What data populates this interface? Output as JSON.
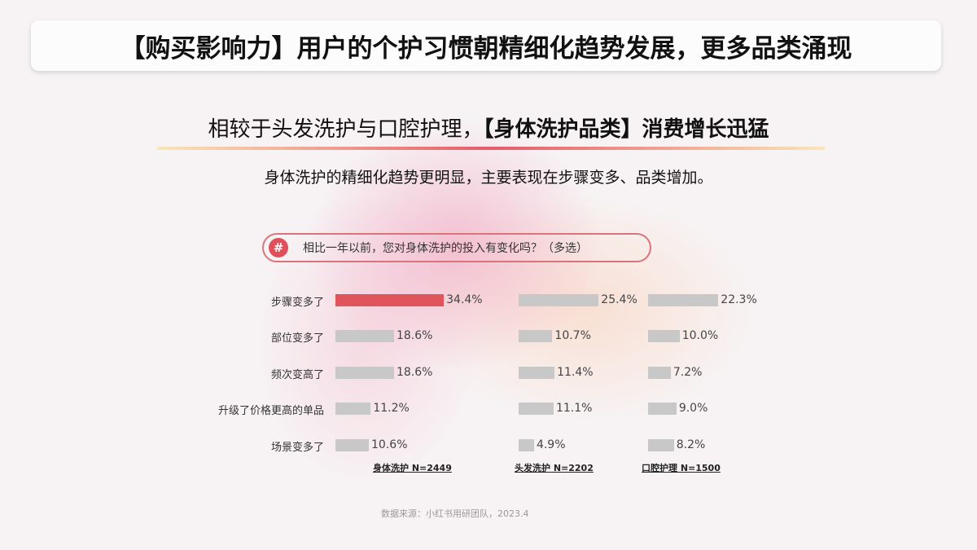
{
  "header": {
    "title": "【购买影响力】用户的个护习惯朝精细化趋势发展，更多品类涌现"
  },
  "subtitle": {
    "prefix": "相较于头发洗护与口腔护理，",
    "highlight": "【身体洗护品类】",
    "suffix": "消费增长迅猛"
  },
  "description": "身体洗护的精细化趋势更明显，主要表现在步骤变多、品类增加。",
  "question": {
    "icon": "hash-icon",
    "text": "相比一年以前，您对身体洗护的投入有变化吗？（多选）"
  },
  "chart_data": {
    "type": "bar",
    "orientation": "horizontal",
    "categories": [
      "步骤变多了",
      "部位变多了",
      "频次变高了",
      "升级了价格更高的单品",
      "场景变多了"
    ],
    "series": [
      {
        "name": "身体洗护 N=2449",
        "values": [
          34.4,
          18.6,
          18.6,
          11.2,
          10.6
        ],
        "labels": [
          "34.4%",
          "18.6%",
          "18.6%",
          "11.2%",
          "10.6%"
        ]
      },
      {
        "name": "头发洗护 N=2202",
        "values": [
          25.4,
          10.7,
          11.4,
          11.1,
          4.9
        ],
        "labels": [
          "25.4%",
          "10.7%",
          "11.4%",
          "11.1%",
          "4.9%"
        ]
      },
      {
        "name": "口腔护理 N=1500",
        "values": [
          22.3,
          10.0,
          7.2,
          9.0,
          8.2
        ],
        "labels": [
          "22.3%",
          "10.0%",
          "7.2%",
          "9.0%",
          "8.2%"
        ]
      }
    ],
    "highlight_color": "#e0555c",
    "bar_color": "#c8c8c8"
  },
  "source": "数据来源：小红书用研团队，2023.4"
}
